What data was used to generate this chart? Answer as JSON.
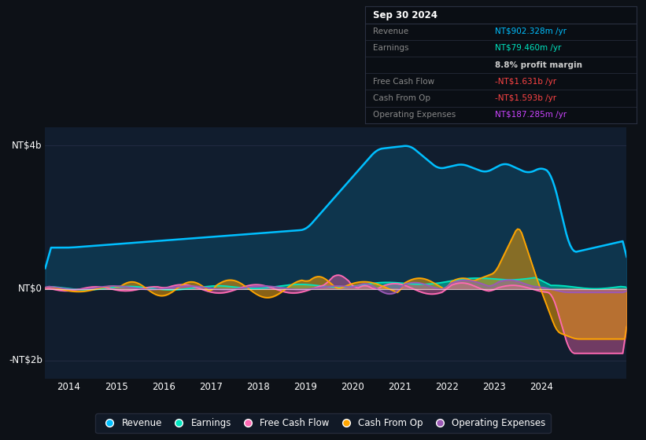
{
  "background_color": "#0d1117",
  "plot_bg_color": "#111d2e",
  "ylabel_top": "NT$4b",
  "ylabel_zero": "NT$0",
  "ylabel_bottom": "-NT$2b",
  "ylim": [
    -2.5,
    4.5
  ],
  "xlim": [
    2013.5,
    2025.8
  ],
  "xticks": [
    2014,
    2015,
    2016,
    2017,
    2018,
    2019,
    2020,
    2021,
    2022,
    2023,
    2024
  ],
  "colors": {
    "Revenue": "#00bfff",
    "Earnings": "#00e5c0",
    "FreeCashFlow": "#ff69b4",
    "CashFromOp": "#ffa500",
    "OperatingExpenses": "#9b59b6"
  },
  "legend": [
    {
      "label": "Revenue",
      "color": "#00bfff"
    },
    {
      "label": "Earnings",
      "color": "#00e5c0"
    },
    {
      "label": "Free Cash Flow",
      "color": "#ff69b4"
    },
    {
      "label": "Cash From Op",
      "color": "#ffa500"
    },
    {
      "label": "Operating Expenses",
      "color": "#9b59b6"
    }
  ],
  "infobox_title": "Sep 30 2024",
  "infobox_rows": [
    {
      "label": "Revenue",
      "value": "NT$902.328m /yr",
      "value_color": "#00bfff",
      "label_color": "#888888"
    },
    {
      "label": "Earnings",
      "value": "NT$79.460m /yr",
      "value_color": "#00e5c0",
      "label_color": "#888888"
    },
    {
      "label": "",
      "value": "8.8% profit margin",
      "value_color": "#cccccc",
      "label_color": "#cccccc"
    },
    {
      "label": "Free Cash Flow",
      "value": "-NT$1.631b /yr",
      "value_color": "#ff4444",
      "label_color": "#888888"
    },
    {
      "label": "Cash From Op",
      "value": "-NT$1.593b /yr",
      "value_color": "#ff4444",
      "label_color": "#888888"
    },
    {
      "label": "Operating Expenses",
      "value": "NT$187.285m /yr",
      "value_color": "#cc44ff",
      "label_color": "#888888"
    }
  ]
}
